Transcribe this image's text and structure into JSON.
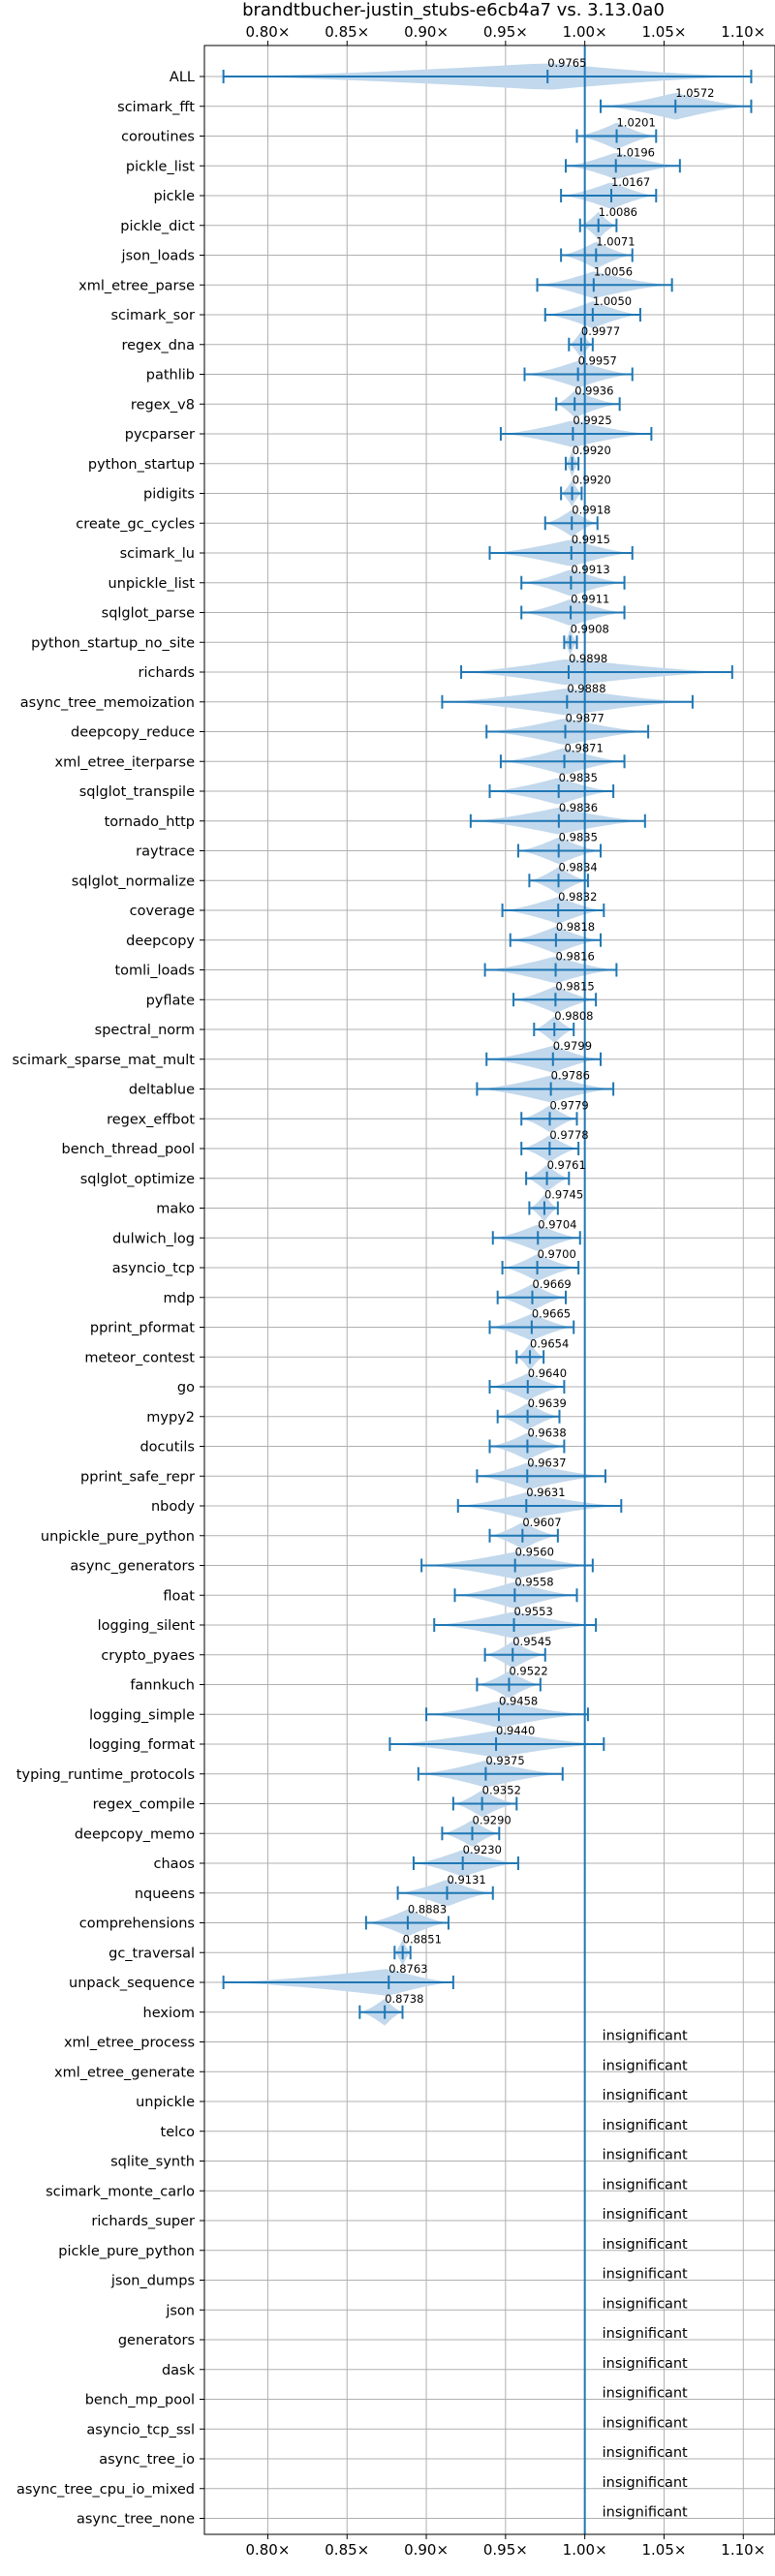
{
  "chart_data": {
    "type": "violin",
    "title": "brandtbucher-justin_stubs-e6cb4a7 vs. 3.13.0a0",
    "xlim": [
      0.76,
      1.12
    ],
    "xticks": [
      0.8,
      0.85,
      0.9,
      0.95,
      1.0,
      1.05,
      1.1
    ],
    "xtick_labels": [
      "0.80×",
      "0.85×",
      "0.90×",
      "0.95×",
      "1.00×",
      "1.05×",
      "1.10×"
    ],
    "reference_line": 1.0,
    "grid": true,
    "insignificant_label": "insignificant",
    "colors": {
      "violin": "#c2d8ec",
      "whisker": "#1f77b4",
      "refline": "#1f77b4",
      "grid": "#b0b0b0"
    },
    "benchmarks": [
      {
        "name": "ALL",
        "value": 0.9765,
        "label": "0.9765",
        "lo": 0.772,
        "hi": 1.105
      },
      {
        "name": "scimark_fft",
        "value": 1.0572,
        "label": "1.0572",
        "lo": 1.01,
        "hi": 1.105
      },
      {
        "name": "coroutines",
        "value": 1.0201,
        "label": "1.0201",
        "lo": 0.995,
        "hi": 1.045
      },
      {
        "name": "pickle_list",
        "value": 1.0196,
        "label": "1.0196",
        "lo": 0.988,
        "hi": 1.06
      },
      {
        "name": "pickle",
        "value": 1.0167,
        "label": "1.0167",
        "lo": 0.985,
        "hi": 1.045
      },
      {
        "name": "pickle_dict",
        "value": 1.0086,
        "label": "1.0086",
        "lo": 0.997,
        "hi": 1.02
      },
      {
        "name": "json_loads",
        "value": 1.0071,
        "label": "1.0071",
        "lo": 0.985,
        "hi": 1.03
      },
      {
        "name": "xml_etree_parse",
        "value": 1.0056,
        "label": "1.0056",
        "lo": 0.97,
        "hi": 1.055
      },
      {
        "name": "scimark_sor",
        "value": 1.005,
        "label": "1.0050",
        "lo": 0.975,
        "hi": 1.035
      },
      {
        "name": "regex_dna",
        "value": 0.9977,
        "label": "0.9977",
        "lo": 0.99,
        "hi": 1.005
      },
      {
        "name": "pathlib",
        "value": 0.9957,
        "label": "0.9957",
        "lo": 0.962,
        "hi": 1.03
      },
      {
        "name": "regex_v8",
        "value": 0.9936,
        "label": "0.9936",
        "lo": 0.982,
        "hi": 1.022
      },
      {
        "name": "pycparser",
        "value": 0.9925,
        "label": "0.9925",
        "lo": 0.947,
        "hi": 1.042
      },
      {
        "name": "python_startup",
        "value": 0.992,
        "label": "0.9920",
        "lo": 0.988,
        "hi": 0.996
      },
      {
        "name": "pidigits",
        "value": 0.992,
        "label": "0.9920",
        "lo": 0.985,
        "hi": 0.998
      },
      {
        "name": "create_gc_cycles",
        "value": 0.9918,
        "label": "0.9918",
        "lo": 0.975,
        "hi": 1.008
      },
      {
        "name": "scimark_lu",
        "value": 0.9915,
        "label": "0.9915",
        "lo": 0.94,
        "hi": 1.03
      },
      {
        "name": "unpickle_list",
        "value": 0.9913,
        "label": "0.9913",
        "lo": 0.96,
        "hi": 1.025
      },
      {
        "name": "sqlglot_parse",
        "value": 0.9911,
        "label": "0.9911",
        "lo": 0.96,
        "hi": 1.025
      },
      {
        "name": "python_startup_no_site",
        "value": 0.9908,
        "label": "0.9908",
        "lo": 0.987,
        "hi": 0.995
      },
      {
        "name": "richards",
        "value": 0.9898,
        "label": "0.9898",
        "lo": 0.922,
        "hi": 1.093
      },
      {
        "name": "async_tree_memoization",
        "value": 0.9888,
        "label": "0.9888",
        "lo": 0.91,
        "hi": 1.068
      },
      {
        "name": "deepcopy_reduce",
        "value": 0.9877,
        "label": "0.9877",
        "lo": 0.938,
        "hi": 1.04
      },
      {
        "name": "xml_etree_iterparse",
        "value": 0.9871,
        "label": "0.9871",
        "lo": 0.947,
        "hi": 1.025
      },
      {
        "name": "sqlglot_transpile",
        "value": 0.9835,
        "label": "0.9835",
        "lo": 0.94,
        "hi": 1.018
      },
      {
        "name": "tornado_http",
        "value": 0.9836,
        "label": "0.9836",
        "lo": 0.928,
        "hi": 1.038
      },
      {
        "name": "raytrace",
        "value": 0.9835,
        "label": "0.9835",
        "lo": 0.958,
        "hi": 1.01
      },
      {
        "name": "sqlglot_normalize",
        "value": 0.9834,
        "label": "0.9834",
        "lo": 0.965,
        "hi": 1.002
      },
      {
        "name": "coverage",
        "value": 0.9832,
        "label": "0.9832",
        "lo": 0.948,
        "hi": 1.012
      },
      {
        "name": "deepcopy",
        "value": 0.9818,
        "label": "0.9818",
        "lo": 0.953,
        "hi": 1.01
      },
      {
        "name": "tomli_loads",
        "value": 0.9816,
        "label": "0.9816",
        "lo": 0.937,
        "hi": 1.02
      },
      {
        "name": "pyflate",
        "value": 0.9815,
        "label": "0.9815",
        "lo": 0.955,
        "hi": 1.007
      },
      {
        "name": "spectral_norm",
        "value": 0.9808,
        "label": "0.9808",
        "lo": 0.968,
        "hi": 0.993
      },
      {
        "name": "scimark_sparse_mat_mult",
        "value": 0.9799,
        "label": "0.9799",
        "lo": 0.938,
        "hi": 1.01
      },
      {
        "name": "deltablue",
        "value": 0.9786,
        "label": "0.9786",
        "lo": 0.932,
        "hi": 1.018
      },
      {
        "name": "regex_effbot",
        "value": 0.9779,
        "label": "0.9779",
        "lo": 0.96,
        "hi": 0.995
      },
      {
        "name": "bench_thread_pool",
        "value": 0.9778,
        "label": "0.9778",
        "lo": 0.96,
        "hi": 0.996
      },
      {
        "name": "sqlglot_optimize",
        "value": 0.9761,
        "label": "0.9761",
        "lo": 0.963,
        "hi": 0.99
      },
      {
        "name": "mako",
        "value": 0.9745,
        "label": "0.9745",
        "lo": 0.965,
        "hi": 0.983
      },
      {
        "name": "dulwich_log",
        "value": 0.9704,
        "label": "0.9704",
        "lo": 0.942,
        "hi": 0.997
      },
      {
        "name": "asyncio_tcp",
        "value": 0.97,
        "label": "0.9700",
        "lo": 0.948,
        "hi": 0.996
      },
      {
        "name": "mdp",
        "value": 0.9669,
        "label": "0.9669",
        "lo": 0.945,
        "hi": 0.988
      },
      {
        "name": "pprint_pformat",
        "value": 0.9665,
        "label": "0.9665",
        "lo": 0.94,
        "hi": 0.993
      },
      {
        "name": "meteor_contest",
        "value": 0.9654,
        "label": "0.9654",
        "lo": 0.957,
        "hi": 0.974
      },
      {
        "name": "go",
        "value": 0.964,
        "label": "0.9640",
        "lo": 0.94,
        "hi": 0.987
      },
      {
        "name": "mypy2",
        "value": 0.9639,
        "label": "0.9639",
        "lo": 0.945,
        "hi": 0.984
      },
      {
        "name": "docutils",
        "value": 0.9638,
        "label": "0.9638",
        "lo": 0.94,
        "hi": 0.987
      },
      {
        "name": "pprint_safe_repr",
        "value": 0.9637,
        "label": "0.9637",
        "lo": 0.932,
        "hi": 1.013
      },
      {
        "name": "nbody",
        "value": 0.9631,
        "label": "0.9631",
        "lo": 0.92,
        "hi": 1.023
      },
      {
        "name": "unpickle_pure_python",
        "value": 0.9607,
        "label": "0.9607",
        "lo": 0.94,
        "hi": 0.983
      },
      {
        "name": "async_generators",
        "value": 0.956,
        "label": "0.9560",
        "lo": 0.897,
        "hi": 1.005
      },
      {
        "name": "float",
        "value": 0.9558,
        "label": "0.9558",
        "lo": 0.918,
        "hi": 0.995
      },
      {
        "name": "logging_silent",
        "value": 0.9553,
        "label": "0.9553",
        "lo": 0.905,
        "hi": 1.007
      },
      {
        "name": "crypto_pyaes",
        "value": 0.9545,
        "label": "0.9545",
        "lo": 0.937,
        "hi": 0.975
      },
      {
        "name": "fannkuch",
        "value": 0.9522,
        "label": "0.9522",
        "lo": 0.932,
        "hi": 0.972
      },
      {
        "name": "logging_simple",
        "value": 0.9458,
        "label": "0.9458",
        "lo": 0.9,
        "hi": 1.002
      },
      {
        "name": "logging_format",
        "value": 0.944,
        "label": "0.9440",
        "lo": 0.877,
        "hi": 1.012
      },
      {
        "name": "typing_runtime_protocols",
        "value": 0.9375,
        "label": "0.9375",
        "lo": 0.895,
        "hi": 0.986
      },
      {
        "name": "regex_compile",
        "value": 0.9352,
        "label": "0.9352",
        "lo": 0.917,
        "hi": 0.957
      },
      {
        "name": "deepcopy_memo",
        "value": 0.929,
        "label": "0.9290",
        "lo": 0.91,
        "hi": 0.946
      },
      {
        "name": "chaos",
        "value": 0.923,
        "label": "0.9230",
        "lo": 0.892,
        "hi": 0.958
      },
      {
        "name": "nqueens",
        "value": 0.9131,
        "label": "0.9131",
        "lo": 0.882,
        "hi": 0.942
      },
      {
        "name": "comprehensions",
        "value": 0.8883,
        "label": "0.8883",
        "lo": 0.862,
        "hi": 0.914
      },
      {
        "name": "gc_traversal",
        "value": 0.8851,
        "label": "0.8851",
        "lo": 0.88,
        "hi": 0.89
      },
      {
        "name": "unpack_sequence",
        "value": 0.8763,
        "label": "0.8763",
        "lo": 0.772,
        "hi": 0.917
      },
      {
        "name": "hexiom",
        "value": 0.8738,
        "label": "0.8738",
        "lo": 0.858,
        "hi": 0.885
      },
      {
        "name": "xml_etree_process",
        "insignificant": true
      },
      {
        "name": "xml_etree_generate",
        "insignificant": true
      },
      {
        "name": "unpickle",
        "insignificant": true
      },
      {
        "name": "telco",
        "insignificant": true
      },
      {
        "name": "sqlite_synth",
        "insignificant": true
      },
      {
        "name": "scimark_monte_carlo",
        "insignificant": true
      },
      {
        "name": "richards_super",
        "insignificant": true
      },
      {
        "name": "pickle_pure_python",
        "insignificant": true
      },
      {
        "name": "json_dumps",
        "insignificant": true
      },
      {
        "name": "json",
        "insignificant": true
      },
      {
        "name": "generators",
        "insignificant": true
      },
      {
        "name": "dask",
        "insignificant": true
      },
      {
        "name": "bench_mp_pool",
        "insignificant": true
      },
      {
        "name": "asyncio_tcp_ssl",
        "insignificant": true
      },
      {
        "name": "async_tree_io",
        "insignificant": true
      },
      {
        "name": "async_tree_cpu_io_mixed",
        "insignificant": true
      },
      {
        "name": "async_tree_none",
        "insignificant": true
      }
    ]
  }
}
